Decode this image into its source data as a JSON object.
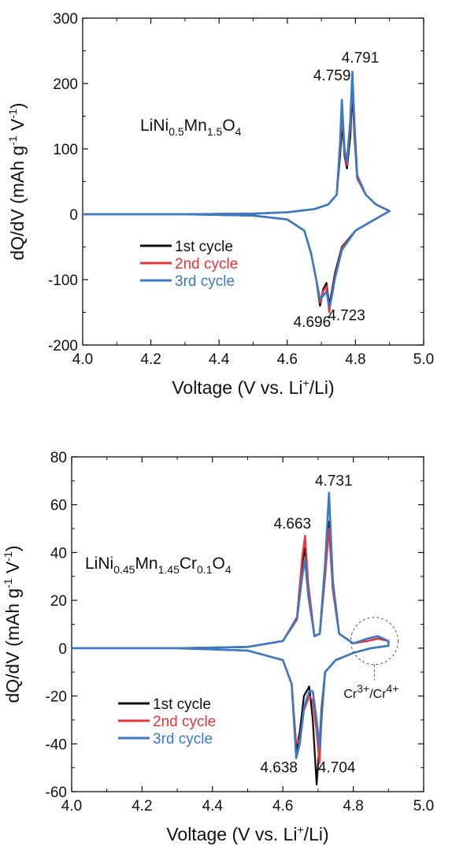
{
  "colors": {
    "cycle1": "#111111",
    "cycle2": "#e8333a",
    "cycle3": "#3a7ac4"
  },
  "units": {
    "yaxis_mid": "  (mAh g",
    "y_sup1": "-1",
    "y_v": " V",
    "y_sup2": "-1",
    "y_close": ")",
    "x_pre": "Voltage (V vs. Li",
    "x_sup": "+",
    "x_post": "/Li)"
  },
  "chart_data": [
    {
      "type": "line",
      "title": "",
      "formula": {
        "parts": [
          "LiNi",
          "0.5",
          "Mn",
          "1.5",
          "O",
          "4"
        ]
      },
      "xlabel": "Voltage (V vs. Li+/Li)",
      "ylabel": "dQ/dV  (mAh g-1 V-1)",
      "ylabel_main": "dQ/dV",
      "xlim": [
        4.0,
        5.0
      ],
      "ylim": [
        -200,
        300
      ],
      "x_ticks": [
        "4.0",
        "4.2",
        "4.4",
        "4.6",
        "4.8",
        "5.0"
      ],
      "y_ticks": [
        "-200",
        "-100",
        "0",
        "100",
        "200",
        "300"
      ],
      "legend": [
        "1st cycle",
        "2nd cycle",
        "3rd cycle"
      ],
      "legend_position": "lower-left",
      "annotations": [
        {
          "text": "4.759",
          "x": 4.759,
          "y": 205
        },
        {
          "text": "4.791",
          "x": 4.791,
          "y": 232
        },
        {
          "text": "4.696",
          "x": 4.696,
          "y": -172
        },
        {
          "text": "4.723",
          "x": 4.723,
          "y": -162
        }
      ],
      "series": [
        {
          "name": "1st cycle",
          "charge": [
            [
              4.0,
              0
            ],
            [
              4.3,
              0
            ],
            [
              4.5,
              1
            ],
            [
              4.6,
              3
            ],
            [
              4.68,
              8
            ],
            [
              4.72,
              15
            ],
            [
              4.745,
              30
            ],
            [
              4.755,
              90
            ],
            [
              4.762,
              140
            ],
            [
              4.768,
              90
            ],
            [
              4.775,
              70
            ],
            [
              4.785,
              120
            ],
            [
              4.791,
              190
            ],
            [
              4.797,
              120
            ],
            [
              4.805,
              55
            ],
            [
              4.83,
              30
            ],
            [
              4.86,
              15
            ],
            [
              4.9,
              5
            ]
          ],
          "discharge": [
            [
              4.9,
              5
            ],
            [
              4.85,
              -10
            ],
            [
              4.8,
              -25
            ],
            [
              4.76,
              -50
            ],
            [
              4.74,
              -90
            ],
            [
              4.73,
              -120
            ],
            [
              4.723,
              -140
            ],
            [
              4.715,
              -105
            ],
            [
              4.705,
              -115
            ],
            [
              4.696,
              -140
            ],
            [
              4.685,
              -100
            ],
            [
              4.67,
              -60
            ],
            [
              4.65,
              -25
            ],
            [
              4.6,
              -8
            ],
            [
              4.5,
              -2
            ],
            [
              4.3,
              0
            ],
            [
              4.0,
              0
            ]
          ]
        },
        {
          "name": "2nd cycle",
          "charge": [
            [
              4.0,
              0
            ],
            [
              4.3,
              0
            ],
            [
              4.5,
              1
            ],
            [
              4.6,
              3
            ],
            [
              4.68,
              8
            ],
            [
              4.72,
              15
            ],
            [
              4.745,
              30
            ],
            [
              4.755,
              100
            ],
            [
              4.761,
              158
            ],
            [
              4.768,
              95
            ],
            [
              4.775,
              75
            ],
            [
              4.785,
              135
            ],
            [
              4.791,
              205
            ],
            [
              4.797,
              130
            ],
            [
              4.805,
              55
            ],
            [
              4.83,
              30
            ],
            [
              4.86,
              15
            ],
            [
              4.9,
              5
            ]
          ],
          "discharge": [
            [
              4.9,
              5
            ],
            [
              4.85,
              -10
            ],
            [
              4.8,
              -25
            ],
            [
              4.76,
              -52
            ],
            [
              4.74,
              -95
            ],
            [
              4.73,
              -125
            ],
            [
              4.723,
              -150
            ],
            [
              4.715,
              -110
            ],
            [
              4.705,
              -118
            ],
            [
              4.696,
              -135
            ],
            [
              4.685,
              -100
            ],
            [
              4.67,
              -60
            ],
            [
              4.65,
              -25
            ],
            [
              4.6,
              -8
            ],
            [
              4.5,
              -2
            ],
            [
              4.3,
              0
            ],
            [
              4.0,
              0
            ]
          ]
        },
        {
          "name": "3rd cycle",
          "charge": [
            [
              4.0,
              0
            ],
            [
              4.3,
              0
            ],
            [
              4.5,
              1
            ],
            [
              4.6,
              3
            ],
            [
              4.68,
              8
            ],
            [
              4.72,
              15
            ],
            [
              4.745,
              30
            ],
            [
              4.755,
              110
            ],
            [
              4.76,
              175
            ],
            [
              4.768,
              100
            ],
            [
              4.775,
              80
            ],
            [
              4.785,
              145
            ],
            [
              4.791,
              218
            ],
            [
              4.797,
              140
            ],
            [
              4.805,
              60
            ],
            [
              4.83,
              30
            ],
            [
              4.86,
              15
            ],
            [
              4.9,
              5
            ]
          ],
          "discharge": [
            [
              4.9,
              5
            ],
            [
              4.85,
              -10
            ],
            [
              4.8,
              -25
            ],
            [
              4.76,
              -55
            ],
            [
              4.74,
              -98
            ],
            [
              4.73,
              -128
            ],
            [
              4.723,
              -142
            ],
            [
              4.715,
              -118
            ],
            [
              4.705,
              -125
            ],
            [
              4.696,
              -130
            ],
            [
              4.685,
              -100
            ],
            [
              4.67,
              -60
            ],
            [
              4.65,
              -25
            ],
            [
              4.6,
              -8
            ],
            [
              4.5,
              -2
            ],
            [
              4.3,
              0
            ],
            [
              4.0,
              0
            ]
          ]
        }
      ]
    },
    {
      "type": "line",
      "title": "",
      "formula": {
        "parts": [
          "LiNi",
          "0.45",
          "Mn",
          "1.45",
          "Cr",
          "0.1",
          "O",
          "4"
        ]
      },
      "xlabel": "Voltage (V vs. Li+/Li)",
      "ylabel": "dQ/dV (mAh g-1 V-1)",
      "ylabel_main": "dQ/dV",
      "xlim": [
        4.0,
        5.0
      ],
      "ylim": [
        -60,
        80
      ],
      "x_ticks": [
        "4.0",
        "4.2",
        "4.4",
        "4.6",
        "4.8",
        "5.0"
      ],
      "y_ticks": [
        "-60",
        "-40",
        "-20",
        "0",
        "20",
        "40",
        "60",
        "80"
      ],
      "legend": [
        "1st cycle",
        "2nd cycle",
        "3rd cycle"
      ],
      "legend_position": "lower-left",
      "annotations": [
        {
          "text": "4.663",
          "x": 4.663,
          "y": 50
        },
        {
          "text": "4.731",
          "x": 4.731,
          "y": 68
        },
        {
          "text": "4.638",
          "x": 4.638,
          "y": -52
        },
        {
          "text": "4.704",
          "x": 4.704,
          "y": -52
        }
      ],
      "note": {
        "text_pre": "Cr",
        "sup1": "3+",
        "mid": "/Cr",
        "sup2": "4+"
      },
      "series": [
        {
          "name": "1st cycle",
          "charge": [
            [
              4.0,
              0
            ],
            [
              4.3,
              0
            ],
            [
              4.5,
              0.5
            ],
            [
              4.6,
              3
            ],
            [
              4.64,
              12
            ],
            [
              4.655,
              35
            ],
            [
              4.663,
              42
            ],
            [
              4.672,
              25
            ],
            [
              4.69,
              5
            ],
            [
              4.705,
              6
            ],
            [
              4.72,
              30
            ],
            [
              4.731,
              53
            ],
            [
              4.742,
              25
            ],
            [
              4.76,
              6
            ],
            [
              4.8,
              2
            ],
            [
              4.84,
              3
            ],
            [
              4.87,
              4
            ],
            [
              4.9,
              3
            ]
          ],
          "discharge": [
            [
              4.9,
              1
            ],
            [
              4.85,
              0
            ],
            [
              4.8,
              -2
            ],
            [
              4.75,
              -5
            ],
            [
              4.72,
              -10
            ],
            [
              4.71,
              -25
            ],
            [
              4.704,
              -40
            ],
            [
              4.696,
              -57
            ],
            [
              4.685,
              -30
            ],
            [
              4.675,
              -16
            ],
            [
              4.66,
              -20
            ],
            [
              4.648,
              -35
            ],
            [
              4.638,
              -43
            ],
            [
              4.625,
              -15
            ],
            [
              4.6,
              -5
            ],
            [
              4.5,
              -1
            ],
            [
              4.3,
              0
            ],
            [
              4.0,
              0
            ]
          ]
        },
        {
          "name": "2nd cycle",
          "charge": [
            [
              4.0,
              0
            ],
            [
              4.3,
              0
            ],
            [
              4.5,
              0.5
            ],
            [
              4.6,
              3
            ],
            [
              4.64,
              13
            ],
            [
              4.655,
              38
            ],
            [
              4.663,
              47
            ],
            [
              4.672,
              27
            ],
            [
              4.69,
              5
            ],
            [
              4.705,
              6
            ],
            [
              4.72,
              30
            ],
            [
              4.731,
              50
            ],
            [
              4.742,
              24
            ],
            [
              4.76,
              6
            ],
            [
              4.8,
              2
            ],
            [
              4.84,
              3
            ],
            [
              4.87,
              4
            ],
            [
              4.9,
              3
            ]
          ],
          "discharge": [
            [
              4.9,
              1
            ],
            [
              4.85,
              0
            ],
            [
              4.8,
              -2
            ],
            [
              4.75,
              -5
            ],
            [
              4.72,
              -10
            ],
            [
              4.71,
              -30
            ],
            [
              4.704,
              -48
            ],
            [
              4.696,
              -35
            ],
            [
              4.685,
              -22
            ],
            [
              4.675,
              -20
            ],
            [
              4.66,
              -26
            ],
            [
              4.648,
              -38
            ],
            [
              4.638,
              -40
            ],
            [
              4.625,
              -15
            ],
            [
              4.6,
              -5
            ],
            [
              4.5,
              -1
            ],
            [
              4.3,
              0
            ],
            [
              4.0,
              0
            ]
          ]
        },
        {
          "name": "3rd cycle",
          "charge": [
            [
              4.0,
              0
            ],
            [
              4.3,
              0
            ],
            [
              4.5,
              0.5
            ],
            [
              4.6,
              3
            ],
            [
              4.64,
              12
            ],
            [
              4.655,
              30
            ],
            [
              4.663,
              37
            ],
            [
              4.672,
              22
            ],
            [
              4.69,
              5
            ],
            [
              4.705,
              6
            ],
            [
              4.72,
              35
            ],
            [
              4.731,
              65
            ],
            [
              4.742,
              28
            ],
            [
              4.76,
              6
            ],
            [
              4.8,
              2
            ],
            [
              4.84,
              4
            ],
            [
              4.87,
              5
            ],
            [
              4.9,
              3
            ]
          ],
          "discharge": [
            [
              4.9,
              1
            ],
            [
              4.85,
              0
            ],
            [
              4.8,
              -2
            ],
            [
              4.75,
              -5
            ],
            [
              4.72,
              -10
            ],
            [
              4.71,
              -28
            ],
            [
              4.704,
              -42
            ],
            [
              4.696,
              -30
            ],
            [
              4.685,
              -18
            ],
            [
              4.675,
              -18
            ],
            [
              4.66,
              -25
            ],
            [
              4.648,
              -40
            ],
            [
              4.638,
              -46
            ],
            [
              4.625,
              -15
            ],
            [
              4.6,
              -5
            ],
            [
              4.5,
              -1
            ],
            [
              4.3,
              0
            ],
            [
              4.0,
              0
            ]
          ]
        }
      ]
    }
  ]
}
